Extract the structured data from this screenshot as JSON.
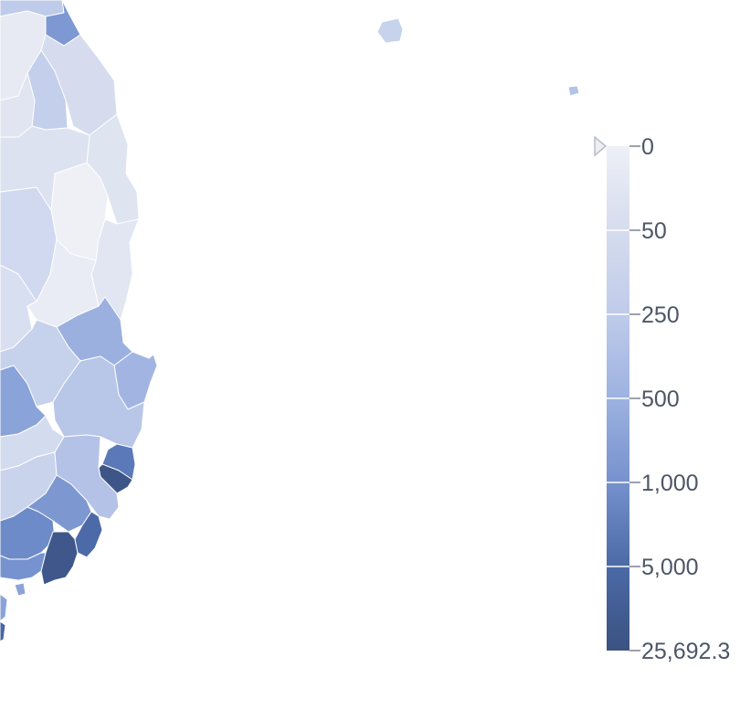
{
  "legend": {
    "ticks": [
      "0",
      "50",
      "250",
      "500",
      "1,000",
      "5,000",
      "25,692.3"
    ],
    "colors": [
      "#eef0f7",
      "#d6dcee",
      "#bfcbea",
      "#9db2e0",
      "#7691cd",
      "#4b6aa6",
      "#3b5282"
    ],
    "indicator_value": 0
  },
  "map": {
    "regions": [
      {
        "id": "r01",
        "fill": "#bfcbea"
      },
      {
        "id": "r02",
        "fill": "#7d98d2"
      },
      {
        "id": "r03",
        "fill": "#e7eaf3"
      },
      {
        "id": "r04",
        "fill": "#d6dcee"
      },
      {
        "id": "r05",
        "fill": "#c3cfeb"
      },
      {
        "id": "r06",
        "fill": "#e1e5f1"
      },
      {
        "id": "r07",
        "fill": "#dfe4f1"
      },
      {
        "id": "r08",
        "fill": "#eef0f6"
      },
      {
        "id": "r09",
        "fill": "#d0d9ef"
      },
      {
        "id": "r10",
        "fill": "#dde2f0"
      },
      {
        "id": "r11",
        "fill": "#e2e6f2"
      },
      {
        "id": "r12",
        "fill": "#e9ecf4"
      },
      {
        "id": "r13",
        "fill": "#d8dff0"
      },
      {
        "id": "r14",
        "fill": "#9bb0df"
      },
      {
        "id": "r15",
        "fill": "#c6d1ec"
      },
      {
        "id": "r16",
        "fill": "#8aa3d8"
      },
      {
        "id": "r17",
        "fill": "#a2b5e2"
      },
      {
        "id": "r18",
        "fill": "#b8c6e8"
      },
      {
        "id": "r19",
        "fill": "#5b79b8"
      },
      {
        "id": "r20",
        "fill": "#3d5587"
      },
      {
        "id": "r21",
        "fill": "#d3dbef"
      },
      {
        "id": "r22",
        "fill": "#c9d3ec"
      },
      {
        "id": "r23",
        "fill": "#b3c2e6"
      },
      {
        "id": "r24",
        "fill": "#7d97d0"
      },
      {
        "id": "r25",
        "fill": "#6e8bc9"
      },
      {
        "id": "r26",
        "fill": "#3f578a"
      },
      {
        "id": "r27",
        "fill": "#4c6aa8"
      },
      {
        "id": "r28",
        "fill": "#7692cf"
      },
      {
        "id": "r29",
        "fill": "#8ba3d8"
      },
      {
        "id": "r30",
        "fill": "#8aa3d9"
      },
      {
        "id": "r31",
        "fill": "#4a66a2"
      },
      {
        "id": "island-ulleung",
        "fill": "#c7d2ec"
      },
      {
        "id": "island-dokdo",
        "fill": "#b3c3e7"
      }
    ]
  }
}
